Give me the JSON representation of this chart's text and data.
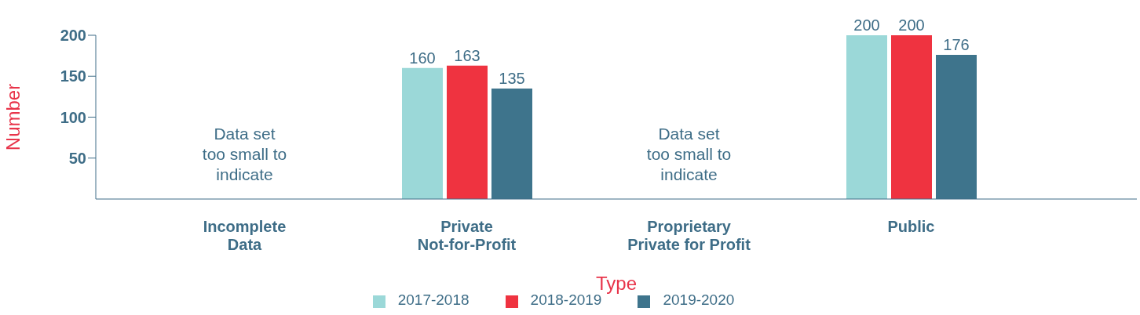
{
  "chart_data": {
    "type": "bar",
    "xlabel": "Type",
    "ylabel": "Number",
    "categories": [
      "Incomplete\nData",
      "Private\nNot-for-Profit",
      "Proprietary\nPrivate for Profit",
      "Public"
    ],
    "series": [
      {
        "name": "2017-2018",
        "color": "#9bd8d8",
        "values": [
          null,
          160,
          null,
          200
        ]
      },
      {
        "name": "2018-2019",
        "color": "#ef3340",
        "values": [
          null,
          163,
          null,
          200
        ]
      },
      {
        "name": "2019-2020",
        "color": "#3e748c",
        "values": [
          null,
          135,
          null,
          176
        ]
      }
    ],
    "ylim": [
      0,
      200
    ],
    "yticks": [
      50,
      100,
      150,
      200
    ],
    "grid": false,
    "legend": "bottom",
    "data_labels": true,
    "annotations": [
      "Data set\ntoo small to\nindicate",
      "Data set\ntoo small to\nindicate"
    ]
  }
}
